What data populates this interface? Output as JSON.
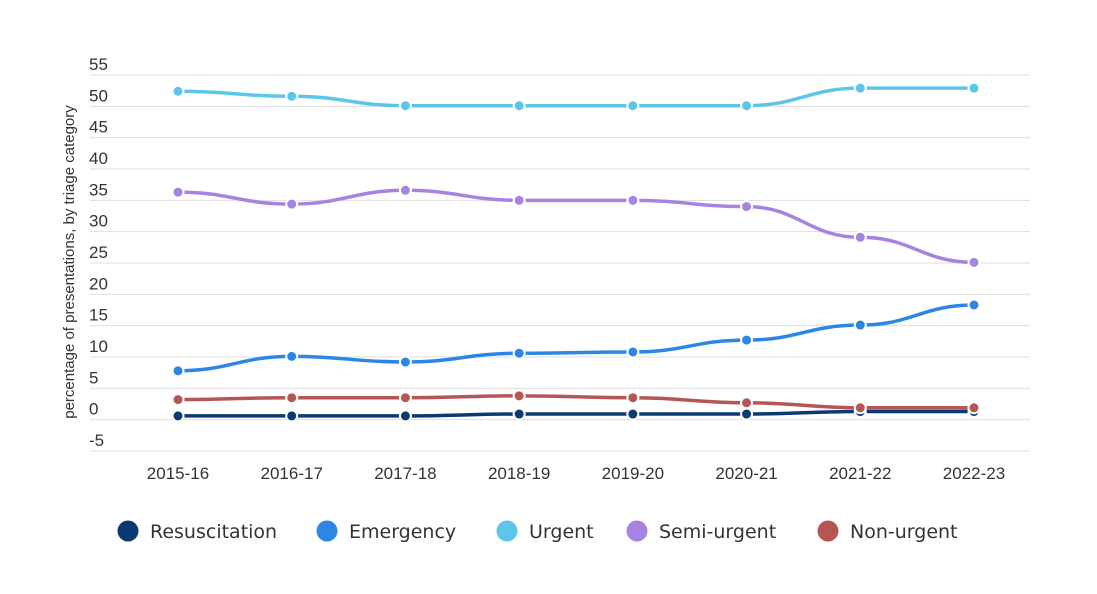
{
  "chart_data": {
    "type": "line",
    "categories": [
      "2015-16",
      "2016-17",
      "2017-18",
      "2018-19",
      "2019-20",
      "2020-21",
      "2021-22",
      "2022-23"
    ],
    "ylabel": "percentage of presentations, by triage category",
    "ylim": [
      -5,
      55
    ],
    "yticks": [
      55,
      50,
      45,
      40,
      35,
      30,
      25,
      20,
      15,
      10,
      5,
      0,
      -5
    ],
    "grid": true,
    "legend_position": "bottom",
    "series": [
      {
        "name": "Resuscitation",
        "color": "#0b3a73",
        "values": [
          0.6,
          0.6,
          0.6,
          0.9,
          0.9,
          0.9,
          1.3,
          1.3
        ]
      },
      {
        "name": "Emergency",
        "color": "#2d86e6",
        "values": [
          7.8,
          10.1,
          9.2,
          10.6,
          10.8,
          12.7,
          15.1,
          18.3
        ]
      },
      {
        "name": "Urgent",
        "color": "#5cc6ea",
        "values": [
          52.4,
          51.6,
          50.1,
          50.1,
          50.1,
          50.1,
          52.9,
          52.9
        ]
      },
      {
        "name": "Semi-urgent",
        "color": "#a683e0",
        "values": [
          36.3,
          34.4,
          36.6,
          35.0,
          35.0,
          34.0,
          29.1,
          25.1
        ]
      },
      {
        "name": "Non-urgent",
        "color": "#b65555",
        "values": [
          3.2,
          3.5,
          3.5,
          3.8,
          3.5,
          2.7,
          1.9,
          1.9
        ]
      }
    ]
  }
}
